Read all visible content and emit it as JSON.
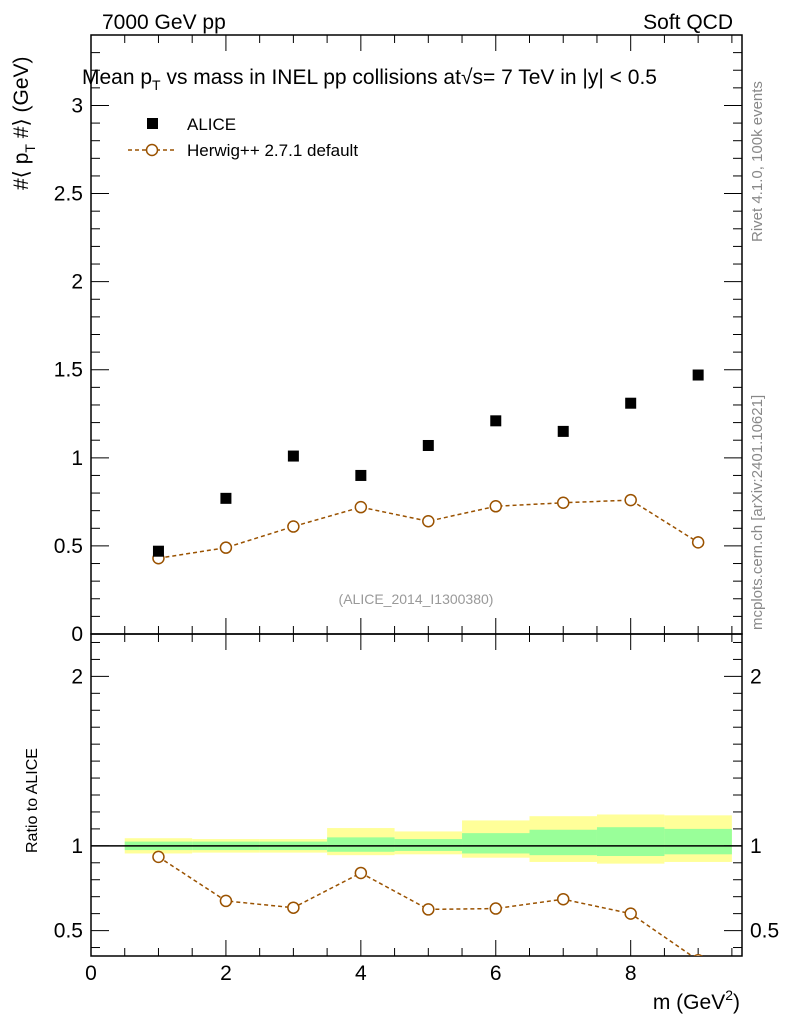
{
  "header": {
    "left": "7000 GeV pp",
    "right": "Soft QCD"
  },
  "side_labels": {
    "rivet": "Rivet 4.1.0,  100k events",
    "mcplots": "mcplots.cern.ch [arXiv:2401.10621]"
  },
  "chart_data": [
    {
      "panel": "main",
      "type": "scatter",
      "title": "Mean p_T vs mass in INEL pp collisions at √s= 7 TeV in |y| < 0.5",
      "title_parts": {
        "pre": "Mean p",
        "sub": "T",
        "post": " vs mass in INEL pp collisions at",
        "sqrt": "√",
        "s_eq": "s=",
        "post2": " 7 TeV in |y| < 0.5"
      },
      "ylabel": "#⟨ p_T #⟩ (GeV)",
      "ylabel_parts": {
        "pre": "#⟨ p",
        "sub": "T",
        "post": " #⟩ (GeV)"
      },
      "xlim": [
        0,
        9.65
      ],
      "ylim": [
        0,
        3.4
      ],
      "yticks": [
        0,
        0.5,
        1,
        1.5,
        2,
        2.5,
        3
      ],
      "ytick_labels": [
        "0",
        "0.5",
        "1",
        "1.5",
        "2",
        "2.5",
        "3"
      ],
      "analysis_id": "(ALICE_2014_I1300380)",
      "legend": [
        "ALICE",
        "Herwig++ 2.7.1 default"
      ],
      "series": [
        {
          "name": "ALICE",
          "marker": "square",
          "color": "#000000",
          "x": [
            1,
            2,
            3,
            4,
            5,
            6,
            7,
            8,
            9
          ],
          "values": [
            0.47,
            0.77,
            1.01,
            0.9,
            1.07,
            1.21,
            1.15,
            1.31,
            1.47
          ]
        },
        {
          "name": "Herwig++ 2.7.1 default",
          "marker": "open-circle",
          "color": "#9a5200",
          "line": "dashed",
          "x": [
            1,
            2,
            3,
            4,
            5,
            6,
            7,
            8,
            9
          ],
          "values": [
            0.43,
            0.49,
            0.61,
            0.72,
            0.64,
            0.725,
            0.745,
            0.76,
            0.52
          ],
          "errors": [
            0.01,
            0.01,
            0.01,
            0.012,
            0.01,
            0.012,
            0.012,
            0.03,
            0.035
          ]
        }
      ]
    },
    {
      "panel": "ratio",
      "type": "line",
      "ylabel": "Ratio to ALICE",
      "xlabel": "m (GeV²)",
      "xlabel_parts": {
        "pre": "m (GeV",
        "sup": "2",
        "post": ")"
      },
      "xlim": [
        0,
        9.65
      ],
      "ylim": [
        0.35,
        2.25
      ],
      "yticks": [
        0.5,
        1,
        2
      ],
      "ytick_labels": [
        "0.5",
        "1",
        "2"
      ],
      "xticks": [
        0,
        2,
        4,
        6,
        8
      ],
      "xtick_labels": [
        "0",
        "2",
        "4",
        "6",
        "8"
      ],
      "bands": {
        "bin_edges": [
          0.5,
          1.5,
          2.5,
          3.5,
          4.5,
          5.5,
          6.5,
          7.5,
          8.5,
          9.5
        ],
        "yellow_low": [
          0.955,
          0.96,
          0.96,
          0.945,
          0.95,
          0.93,
          0.905,
          0.895,
          0.905
        ],
        "yellow_high": [
          1.045,
          1.04,
          1.04,
          1.105,
          1.085,
          1.15,
          1.175,
          1.185,
          1.18
        ],
        "green_low": [
          0.975,
          0.975,
          0.975,
          0.965,
          0.97,
          0.955,
          0.945,
          0.94,
          0.95
        ],
        "green_high": [
          1.025,
          1.025,
          1.025,
          1.05,
          1.04,
          1.075,
          1.095,
          1.11,
          1.1
        ],
        "yellow_color": "#ffff99",
        "green_color": "#99ff99"
      },
      "series": [
        {
          "name": "Herwig++ 2.7.1 default",
          "color": "#9a5200",
          "x": [
            1,
            2,
            3,
            4,
            5,
            6,
            7,
            8,
            9
          ],
          "values": [
            0.935,
            0.675,
            0.635,
            0.84,
            0.625,
            0.63,
            0.685,
            0.6,
            0.325
          ],
          "errors": [
            0.01,
            0.01,
            0.01,
            0.012,
            0.01,
            0.01,
            0.012,
            0.03,
            0.03
          ]
        }
      ]
    }
  ]
}
